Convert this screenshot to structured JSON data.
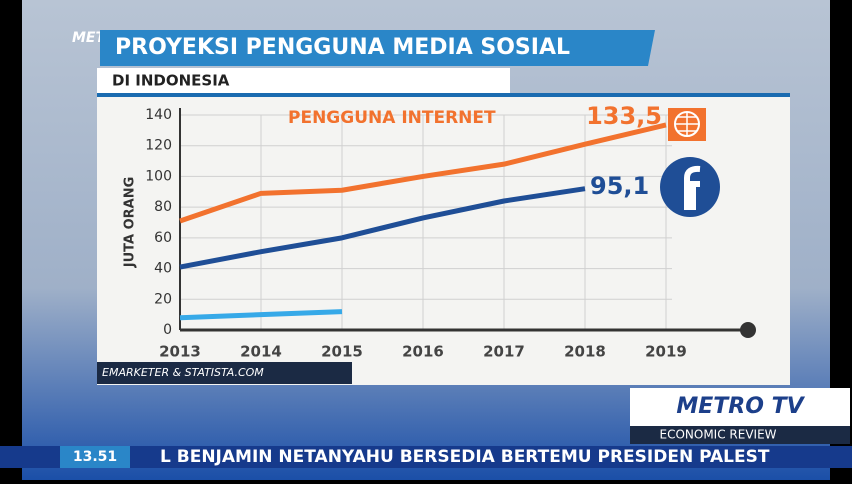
{
  "broadcast": {
    "logo": "METROTV NEWS",
    "brand": "METRO TV",
    "program": "ECONOMIC REVIEW",
    "ticker_time": "13.51",
    "ticker_text": "L BENJAMIN NETANYAHU BERSEDIA BERTEMU PRESIDEN PALEST",
    "source": "EMARKETER & STATISTA.COM"
  },
  "chart_data": {
    "type": "line",
    "title": "PROYEKSI PENGGUNA MEDIA SOSIAL",
    "subtitle": "DI INDONESIA",
    "y_label": "JUTA ORANG",
    "categories": [
      "2013",
      "2014",
      "2015",
      "2016",
      "2017",
      "2018",
      "2019"
    ],
    "series": [
      {
        "name": "PENGGUNA INTERNET",
        "color": "#f2722e",
        "values": [
          71,
          89,
          91,
          100,
          108,
          121,
          133.5
        ],
        "value_labels": [
          null,
          null,
          null,
          null,
          null,
          null,
          "133,5"
        ]
      },
      {
        "color": "#1f4e96",
        "values": [
          41,
          51,
          60,
          73,
          84,
          92,
          null
        ]
      },
      {
        "color": "#36a9e8",
        "values": [
          8,
          10,
          12,
          null,
          null,
          null,
          null
        ]
      }
    ],
    "annotations": [
      "95,1"
    ],
    "ylim": [
      0,
      140
    ],
    "yticks": [
      0,
      20,
      40,
      60,
      80,
      100,
      120,
      140
    ],
    "grid": true
  }
}
